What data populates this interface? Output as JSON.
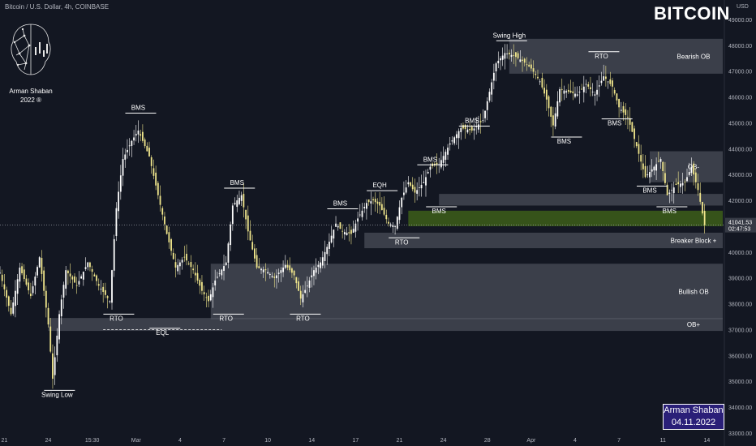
{
  "header": {
    "symbol_line": "Bitcoin / U.S. Dollar, 4h, COINBASE",
    "title": "BITCOIN",
    "currency": "USD"
  },
  "logo": {
    "name_line": "Arman Shaban",
    "year_line": "2022 ®"
  },
  "signature": {
    "name": "Arman Shaban",
    "date": "04.11.2022"
  },
  "price_tag": {
    "price": "41041.53",
    "countdown": "02:47:53",
    "color": "#ffffff"
  },
  "colors": {
    "background": "#131722",
    "candle_up": "#ffffff",
    "candle_down": "#f0e68c",
    "zone": "#5d606b",
    "green_zone": "#3b5a1a",
    "text": "#ffffff",
    "axis_text": "#b2b5be"
  },
  "chart_data": {
    "type": "candlestick",
    "title": "BITCOIN",
    "xlabel": "",
    "ylabel": "",
    "ylim": [
      33000,
      49500
    ],
    "y_ticks": [
      33000,
      34000,
      35000,
      36000,
      37000,
      38000,
      39000,
      40000,
      41000,
      42000,
      43000,
      44000,
      45000,
      46000,
      47000,
      48000,
      49000
    ],
    "y_tick_labels": [
      "33000.00",
      "34000.00",
      "35000.00",
      "36000.00",
      "37000.00",
      "38000.00",
      "39000.00",
      "40000.00",
      "41000.00",
      "42000.00",
      "43000.00",
      "44000.00",
      "45000.00",
      "46000.00",
      "47000.00",
      "48000.00",
      "49000.00"
    ],
    "x_tick_labels": [
      "21",
      "24",
      "15:30",
      "Mar",
      "4",
      "7",
      "10",
      "14",
      "17",
      "21",
      "24",
      "28",
      "Apr",
      "4",
      "7",
      "11",
      "14"
    ],
    "last_price": 41041.53,
    "close_path": [
      {
        "x": 0,
        "y": 39200
      },
      {
        "x": 5,
        "y": 37600
      },
      {
        "x": 9,
        "y": 39400
      },
      {
        "x": 14,
        "y": 38300
      },
      {
        "x": 18,
        "y": 39800
      },
      {
        "x": 22,
        "y": 37200
      },
      {
        "x": 24,
        "y": 35100
      },
      {
        "x": 27,
        "y": 37600
      },
      {
        "x": 30,
        "y": 39300
      },
      {
        "x": 35,
        "y": 38700
      },
      {
        "x": 40,
        "y": 39600
      },
      {
        "x": 45,
        "y": 38700
      },
      {
        "x": 50,
        "y": 38100
      },
      {
        "x": 53,
        "y": 41700
      },
      {
        "x": 56,
        "y": 43600
      },
      {
        "x": 60,
        "y": 44300
      },
      {
        "x": 63,
        "y": 44700
      },
      {
        "x": 68,
        "y": 43700
      },
      {
        "x": 72,
        "y": 42200
      },
      {
        "x": 76,
        "y": 40700
      },
      {
        "x": 80,
        "y": 39400
      },
      {
        "x": 84,
        "y": 39800
      },
      {
        "x": 88,
        "y": 39300
      },
      {
        "x": 92,
        "y": 38500
      },
      {
        "x": 95,
        "y": 38100
      },
      {
        "x": 98,
        "y": 38900
      },
      {
        "x": 103,
        "y": 39600
      },
      {
        "x": 106,
        "y": 41800
      },
      {
        "x": 110,
        "y": 42200
      },
      {
        "x": 113,
        "y": 40800
      },
      {
        "x": 117,
        "y": 39400
      },
      {
        "x": 121,
        "y": 39300
      },
      {
        "x": 125,
        "y": 39000
      },
      {
        "x": 130,
        "y": 39500
      },
      {
        "x": 134,
        "y": 39100
      },
      {
        "x": 137,
        "y": 38200
      },
      {
        "x": 140,
        "y": 38700
      },
      {
        "x": 143,
        "y": 39300
      },
      {
        "x": 146,
        "y": 39600
      },
      {
        "x": 150,
        "y": 40400
      },
      {
        "x": 153,
        "y": 41100
      },
      {
        "x": 156,
        "y": 40800
      },
      {
        "x": 160,
        "y": 40700
      },
      {
        "x": 163,
        "y": 41300
      },
      {
        "x": 167,
        "y": 41900
      },
      {
        "x": 170,
        "y": 42000
      },
      {
        "x": 173,
        "y": 41800
      },
      {
        "x": 177,
        "y": 41100
      },
      {
        "x": 180,
        "y": 41000
      },
      {
        "x": 183,
        "y": 42100
      },
      {
        "x": 186,
        "y": 42700
      },
      {
        "x": 189,
        "y": 42300
      },
      {
        "x": 193,
        "y": 42700
      },
      {
        "x": 196,
        "y": 43300
      },
      {
        "x": 200,
        "y": 43400
      },
      {
        "x": 205,
        "y": 44200
      },
      {
        "x": 210,
        "y": 44800
      },
      {
        "x": 215,
        "y": 44700
      },
      {
        "x": 220,
        "y": 45100
      },
      {
        "x": 223,
        "y": 46200
      },
      {
        "x": 226,
        "y": 47300
      },
      {
        "x": 230,
        "y": 47700
      },
      {
        "x": 234,
        "y": 47600
      },
      {
        "x": 238,
        "y": 47400
      },
      {
        "x": 242,
        "y": 47100
      },
      {
        "x": 246,
        "y": 46600
      },
      {
        "x": 249,
        "y": 45900
      },
      {
        "x": 252,
        "y": 44900
      },
      {
        "x": 255,
        "y": 46300
      },
      {
        "x": 259,
        "y": 46200
      },
      {
        "x": 263,
        "y": 46100
      },
      {
        "x": 267,
        "y": 46500
      },
      {
        "x": 271,
        "y": 46100
      },
      {
        "x": 275,
        "y": 46800
      },
      {
        "x": 279,
        "y": 46400
      },
      {
        "x": 282,
        "y": 45600
      },
      {
        "x": 286,
        "y": 45200
      },
      {
        "x": 290,
        "y": 44100
      },
      {
        "x": 294,
        "y": 42900
      },
      {
        "x": 297,
        "y": 43200
      },
      {
        "x": 301,
        "y": 43600
      },
      {
        "x": 304,
        "y": 42200
      },
      {
        "x": 308,
        "y": 42600
      },
      {
        "x": 312,
        "y": 42700
      },
      {
        "x": 315,
        "y": 43300
      },
      {
        "x": 318,
        "y": 42400
      },
      {
        "x": 321,
        "y": 41041
      }
    ],
    "zones": [
      {
        "label": "Bearish OB",
        "y1": 46900,
        "y2": 48250
      },
      {
        "label": "OB-",
        "y1": 42700,
        "y2": 43900
      },
      {
        "label": "",
        "y1": 41800,
        "y2": 42250
      },
      {
        "label": "",
        "y1": 41000,
        "y2": 41600
      },
      {
        "label": "Breaker Block +",
        "y1": 40150,
        "y2": 40750
      },
      {
        "label": "Bullish OB",
        "y1": 37400,
        "y2": 39550
      },
      {
        "label": "OB+",
        "y1": 36950,
        "y2": 37450
      }
    ],
    "annotations": [
      {
        "text": "Swing High",
        "x": 232,
        "y": 48300
      },
      {
        "text": "Swing Low",
        "x": 26,
        "y": 34400
      },
      {
        "text": "BMS",
        "x": 63,
        "y": 45500
      },
      {
        "text": "BMS",
        "x": 108,
        "y": 42600
      },
      {
        "text": "BMS",
        "x": 155,
        "y": 41800
      },
      {
        "text": "EQH",
        "x": 173,
        "y": 42500
      },
      {
        "text": "BMS",
        "x": 196,
        "y": 43500
      },
      {
        "text": "BMS",
        "x": 200,
        "y": 41500
      },
      {
        "text": "BMS",
        "x": 215,
        "y": 45000
      },
      {
        "text": "BMS",
        "x": 257,
        "y": 44200
      },
      {
        "text": "RTO",
        "x": 274,
        "y": 47500
      },
      {
        "text": "BMS",
        "x": 280,
        "y": 44900
      },
      {
        "text": "BMS",
        "x": 296,
        "y": 42300
      },
      {
        "text": "BMS",
        "x": 305,
        "y": 41500
      },
      {
        "text": "RTO",
        "x": 53,
        "y": 37350
      },
      {
        "text": "EQL",
        "x": 74,
        "y": 36800
      },
      {
        "text": "RTO",
        "x": 103,
        "y": 37350
      },
      {
        "text": "RTO",
        "x": 138,
        "y": 37350
      },
      {
        "text": "RTO",
        "x": 183,
        "y": 40300
      }
    ]
  }
}
